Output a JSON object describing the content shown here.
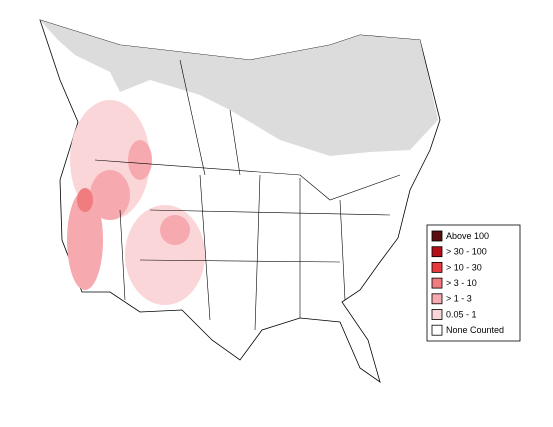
{
  "legend": {
    "items": [
      {
        "label": "Above 100",
        "color": "#5a0e12"
      },
      {
        "label": "> 30 - 100",
        "color": "#b40f17"
      },
      {
        "label": "> 10 - 30",
        "color": "#e8393c"
      },
      {
        "label": "> 3 - 10",
        "color": "#f07c80"
      },
      {
        "label": "> 1 - 3",
        "color": "#f6aaaf"
      },
      {
        "label": "0.05 - 1",
        "color": "#fbd6d8"
      },
      {
        "label": "None Counted",
        "color": "#ffffff"
      }
    ]
  }
}
